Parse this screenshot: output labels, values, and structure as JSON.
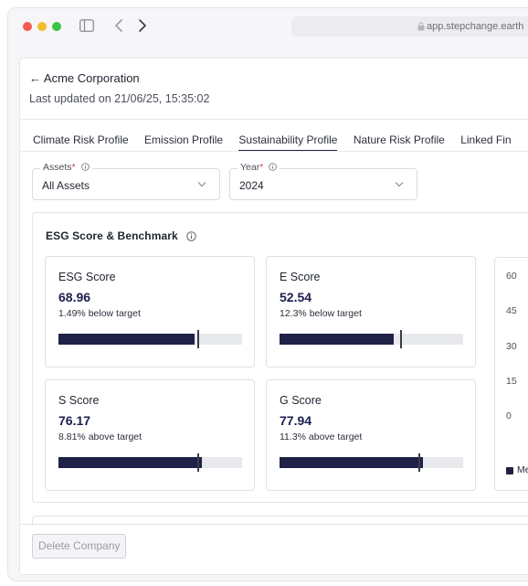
{
  "browser": {
    "url": "app.stepchange.earth"
  },
  "header": {
    "back_label": "← Acme Corporation",
    "last_updated": "Last updated on 21/06/25, 15:35:02"
  },
  "tabs": [
    {
      "label": "Climate Risk Profile",
      "active": false
    },
    {
      "label": "Emission Profile",
      "active": false
    },
    {
      "label": "Sustainability Profile",
      "active": true
    },
    {
      "label": "Nature Risk Profile",
      "active": false
    },
    {
      "label": "Linked Fin",
      "active": false
    }
  ],
  "filters": {
    "assets": {
      "label": "Assets",
      "required_mark": "*",
      "value": "All Assets"
    },
    "year": {
      "label": "Year",
      "required_mark": "*",
      "value": "2024"
    }
  },
  "esg": {
    "title": "ESG Score & Benchmark",
    "scores": [
      {
        "name": "ESG Score",
        "value": "68.96",
        "delta": "1.49% below target",
        "fill_pct": 74,
        "target_pct": 76
      },
      {
        "name": "E Score",
        "value": "52.54",
        "delta": "12.3% below target",
        "fill_pct": 62,
        "target_pct": 66
      },
      {
        "name": "S Score",
        "value": "76.17",
        "delta": "8.81% above target",
        "fill_pct": 78,
        "target_pct": 76
      },
      {
        "name": "G Score",
        "value": "77.94",
        "delta": "11.3% above target",
        "fill_pct": 78,
        "target_pct": 76
      }
    ]
  },
  "chart_data": {
    "type": "bar",
    "ylim": [
      0,
      60
    ],
    "yticks": [
      "60",
      "45",
      "30",
      "15",
      "0"
    ],
    "legend": [
      "Me"
    ],
    "legend_position": "bottom"
  },
  "footer": {
    "delete_label": "Delete Company"
  }
}
